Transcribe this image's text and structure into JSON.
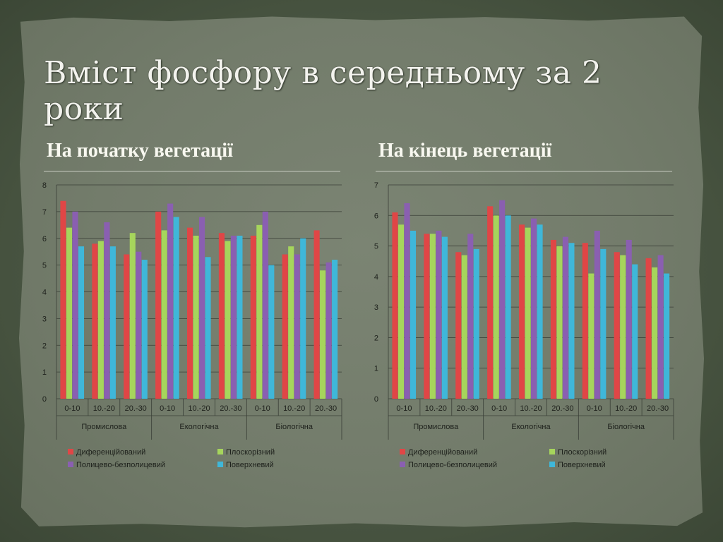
{
  "slide": {
    "title": "Вміст фосфору в середньому за 2 роки",
    "left_subtitle": "На початку вегетації",
    "right_subtitle": "На кінець вегетації"
  },
  "chart_data": [
    {
      "type": "bar",
      "title": "",
      "xlabel": "",
      "ylabel": "",
      "ylim": [
        0,
        8
      ],
      "yticks": [
        0,
        1,
        2,
        3,
        4,
        5,
        6,
        7,
        8
      ],
      "grid": true,
      "legend": "bottom",
      "groups": [
        "Промислова",
        "Екологічна",
        "Біологічна"
      ],
      "categories": [
        "0-10",
        "10.-20",
        "20.-30",
        "0-10",
        "10.-20",
        "20.-30",
        "0-10",
        "10.-20",
        "20.-30"
      ],
      "series": [
        {
          "name": "Диференційований",
          "color": "#e04646",
          "values": [
            7.4,
            5.8,
            5.4,
            7.0,
            6.4,
            6.2,
            6.1,
            5.4,
            6.3
          ]
        },
        {
          "name": "Плоскорізний",
          "color": "#a6d55c",
          "values": [
            6.4,
            5.9,
            6.2,
            6.3,
            6.1,
            5.9,
            6.5,
            5.7,
            4.8
          ]
        },
        {
          "name": "Полицево-безполицевий",
          "color": "#8a5fb1",
          "values": [
            7.0,
            6.6,
            5.5,
            7.3,
            6.8,
            6.1,
            7.0,
            5.4,
            5.1
          ]
        },
        {
          "name": "Поверхневий",
          "color": "#3fb7d9",
          "values": [
            5.7,
            5.7,
            5.2,
            6.8,
            5.3,
            6.1,
            5.0,
            6.0,
            5.2
          ]
        }
      ]
    },
    {
      "type": "bar",
      "title": "",
      "xlabel": "",
      "ylabel": "",
      "ylim": [
        0,
        7
      ],
      "yticks": [
        0,
        1,
        2,
        3,
        4,
        5,
        6,
        7
      ],
      "grid": true,
      "legend": "bottom",
      "groups": [
        "Промислова",
        "Екологічна",
        "Біологічна"
      ],
      "categories": [
        "0-10",
        "10.-20",
        "20.-30",
        "0-10",
        "10.-20",
        "20.-30",
        "0-10",
        "10.-20",
        "20.-30"
      ],
      "series": [
        {
          "name": "Диференційований",
          "color": "#e04646",
          "values": [
            6.1,
            5.4,
            4.8,
            6.3,
            5.7,
            5.2,
            5.1,
            4.8,
            4.6
          ]
        },
        {
          "name": "Плоскорізний",
          "color": "#a6d55c",
          "values": [
            5.7,
            5.4,
            4.7,
            6.0,
            5.6,
            5.0,
            4.1,
            4.7,
            4.3
          ]
        },
        {
          "name": "Полицево-безполицевий",
          "color": "#8a5fb1",
          "values": [
            6.4,
            5.5,
            5.4,
            6.5,
            5.9,
            5.3,
            5.5,
            5.2,
            4.7
          ]
        },
        {
          "name": "Поверхневий",
          "color": "#3fb7d9",
          "values": [
            5.5,
            5.3,
            4.9,
            6.0,
            5.7,
            5.1,
            4.9,
            4.4,
            4.1
          ]
        }
      ]
    }
  ]
}
